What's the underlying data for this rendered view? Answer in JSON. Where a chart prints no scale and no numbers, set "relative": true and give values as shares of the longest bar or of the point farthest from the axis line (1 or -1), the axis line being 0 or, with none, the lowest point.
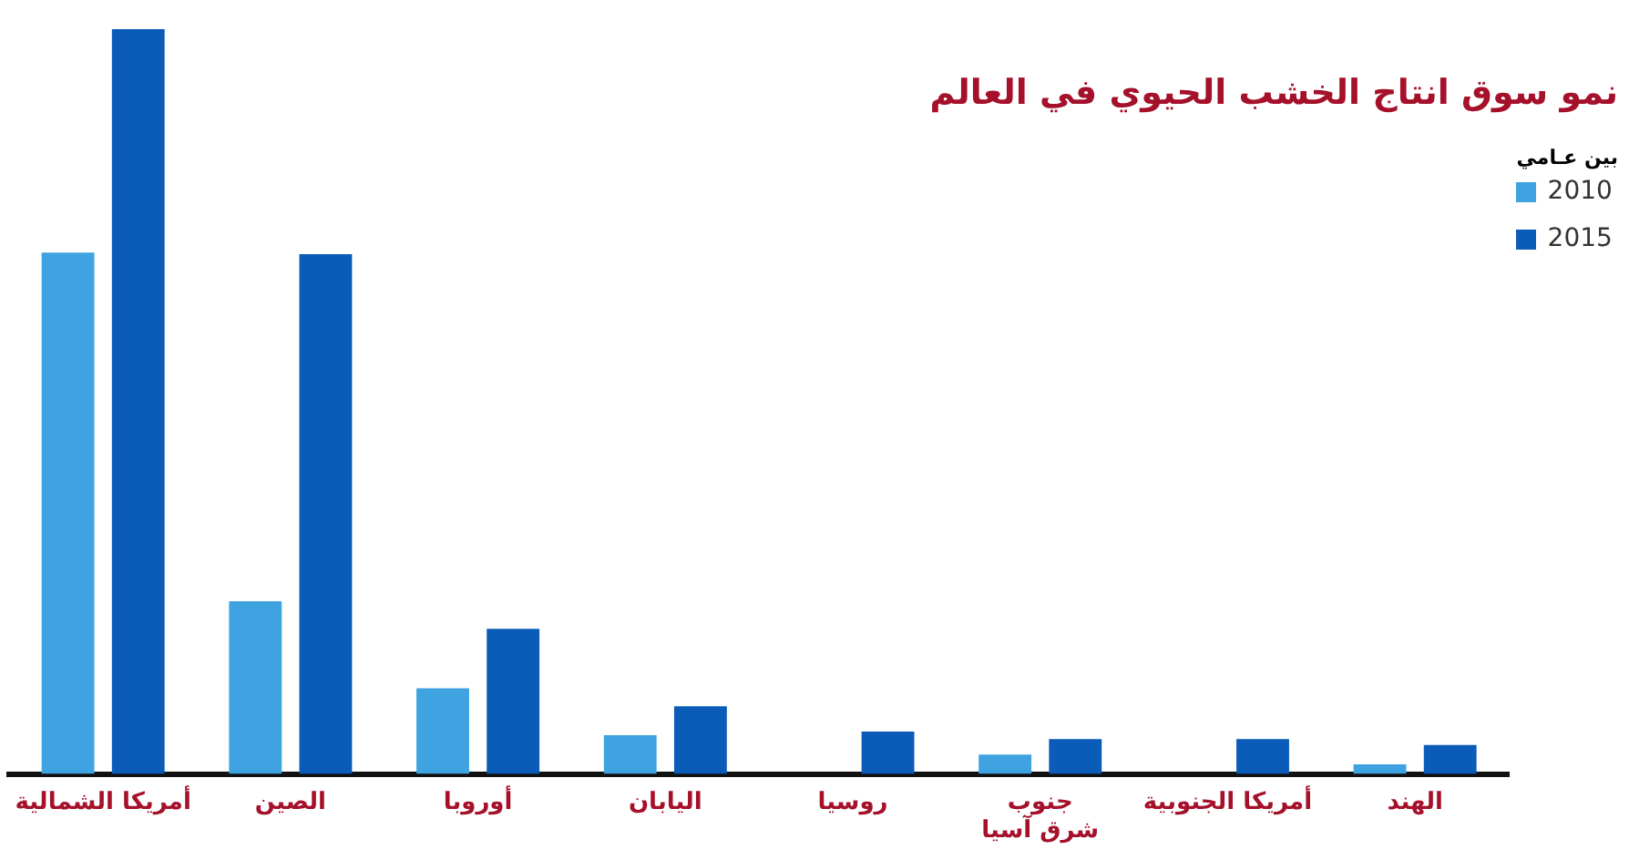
{
  "chart_data": {
    "type": "bar",
    "title": "نمو سوق انتاج الخشب الحيوي في العالم",
    "legend_title": "بين عـامي",
    "relative": true,
    "legend": "top right",
    "grid": false,
    "categories": [
      "أمريكا الشمالية",
      "الصين",
      "أوروبا",
      "اليابان",
      "روسيا",
      "جنوب\nشرق آسيا",
      "أمريكا الجنوبية",
      "الهند"
    ],
    "series": [
      {
        "name": "2010",
        "color": "#3ea3e0",
        "values": [
          0.7,
          0.232,
          0.115,
          0.052,
          null,
          0.026,
          null,
          0.013
        ]
      },
      {
        "name": "2015",
        "color": "#0a5cb8",
        "values": [
          1,
          0.698,
          0.195,
          0.091,
          0.057,
          0.047,
          0.047,
          0.039
        ]
      }
    ]
  }
}
